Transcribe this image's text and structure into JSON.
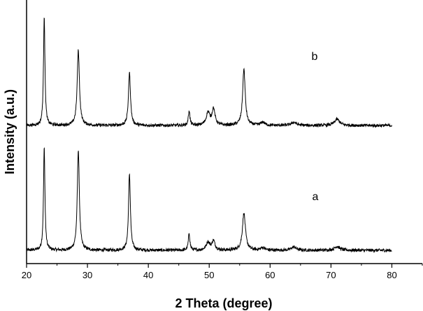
{
  "chart_data": {
    "type": "line",
    "xlabel": "2 Theta (degree)",
    "ylabel": "Intensity (a.u.)",
    "xlim": [
      20,
      85
    ],
    "x_ticks": [
      "20",
      "30",
      "40",
      "50",
      "60",
      "70",
      "80"
    ],
    "y_ticks_shown": false,
    "grid": false,
    "x_range": [
      20,
      80
    ],
    "series": [
      {
        "name": "a",
        "baseline": 0.0,
        "noise": 0.012,
        "peaks": [
          {
            "x": 22.9,
            "h": 0.78,
            "w": 0.14
          },
          {
            "x": 28.5,
            "h": 0.76,
            "w": 0.2
          },
          {
            "x": 36.9,
            "h": 0.58,
            "w": 0.18
          },
          {
            "x": 46.7,
            "h": 0.13,
            "w": 0.15
          },
          {
            "x": 49.8,
            "h": 0.06,
            "w": 0.35
          },
          {
            "x": 50.7,
            "h": 0.07,
            "w": 0.3
          },
          {
            "x": 55.7,
            "h": 0.28,
            "w": 0.3
          },
          {
            "x": 58.8,
            "h": 0.02,
            "w": 0.4
          },
          {
            "x": 63.9,
            "h": 0.025,
            "w": 0.5
          },
          {
            "x": 71.0,
            "h": 0.03,
            "w": 0.5
          }
        ]
      },
      {
        "name": "b",
        "baseline": 0.0,
        "noise": 0.012,
        "peaks": [
          {
            "x": 22.9,
            "h": 0.88,
            "w": 0.14
          },
          {
            "x": 28.5,
            "h": 0.6,
            "w": 0.22
          },
          {
            "x": 36.9,
            "h": 0.42,
            "w": 0.2
          },
          {
            "x": 46.7,
            "h": 0.12,
            "w": 0.15
          },
          {
            "x": 49.8,
            "h": 0.1,
            "w": 0.35
          },
          {
            "x": 50.7,
            "h": 0.13,
            "w": 0.3
          },
          {
            "x": 55.7,
            "h": 0.45,
            "w": 0.25
          },
          {
            "x": 58.8,
            "h": 0.025,
            "w": 0.4
          },
          {
            "x": 63.9,
            "h": 0.025,
            "w": 0.5
          },
          {
            "x": 71.0,
            "h": 0.05,
            "w": 0.5
          }
        ]
      }
    ],
    "line_color": "#000000"
  }
}
